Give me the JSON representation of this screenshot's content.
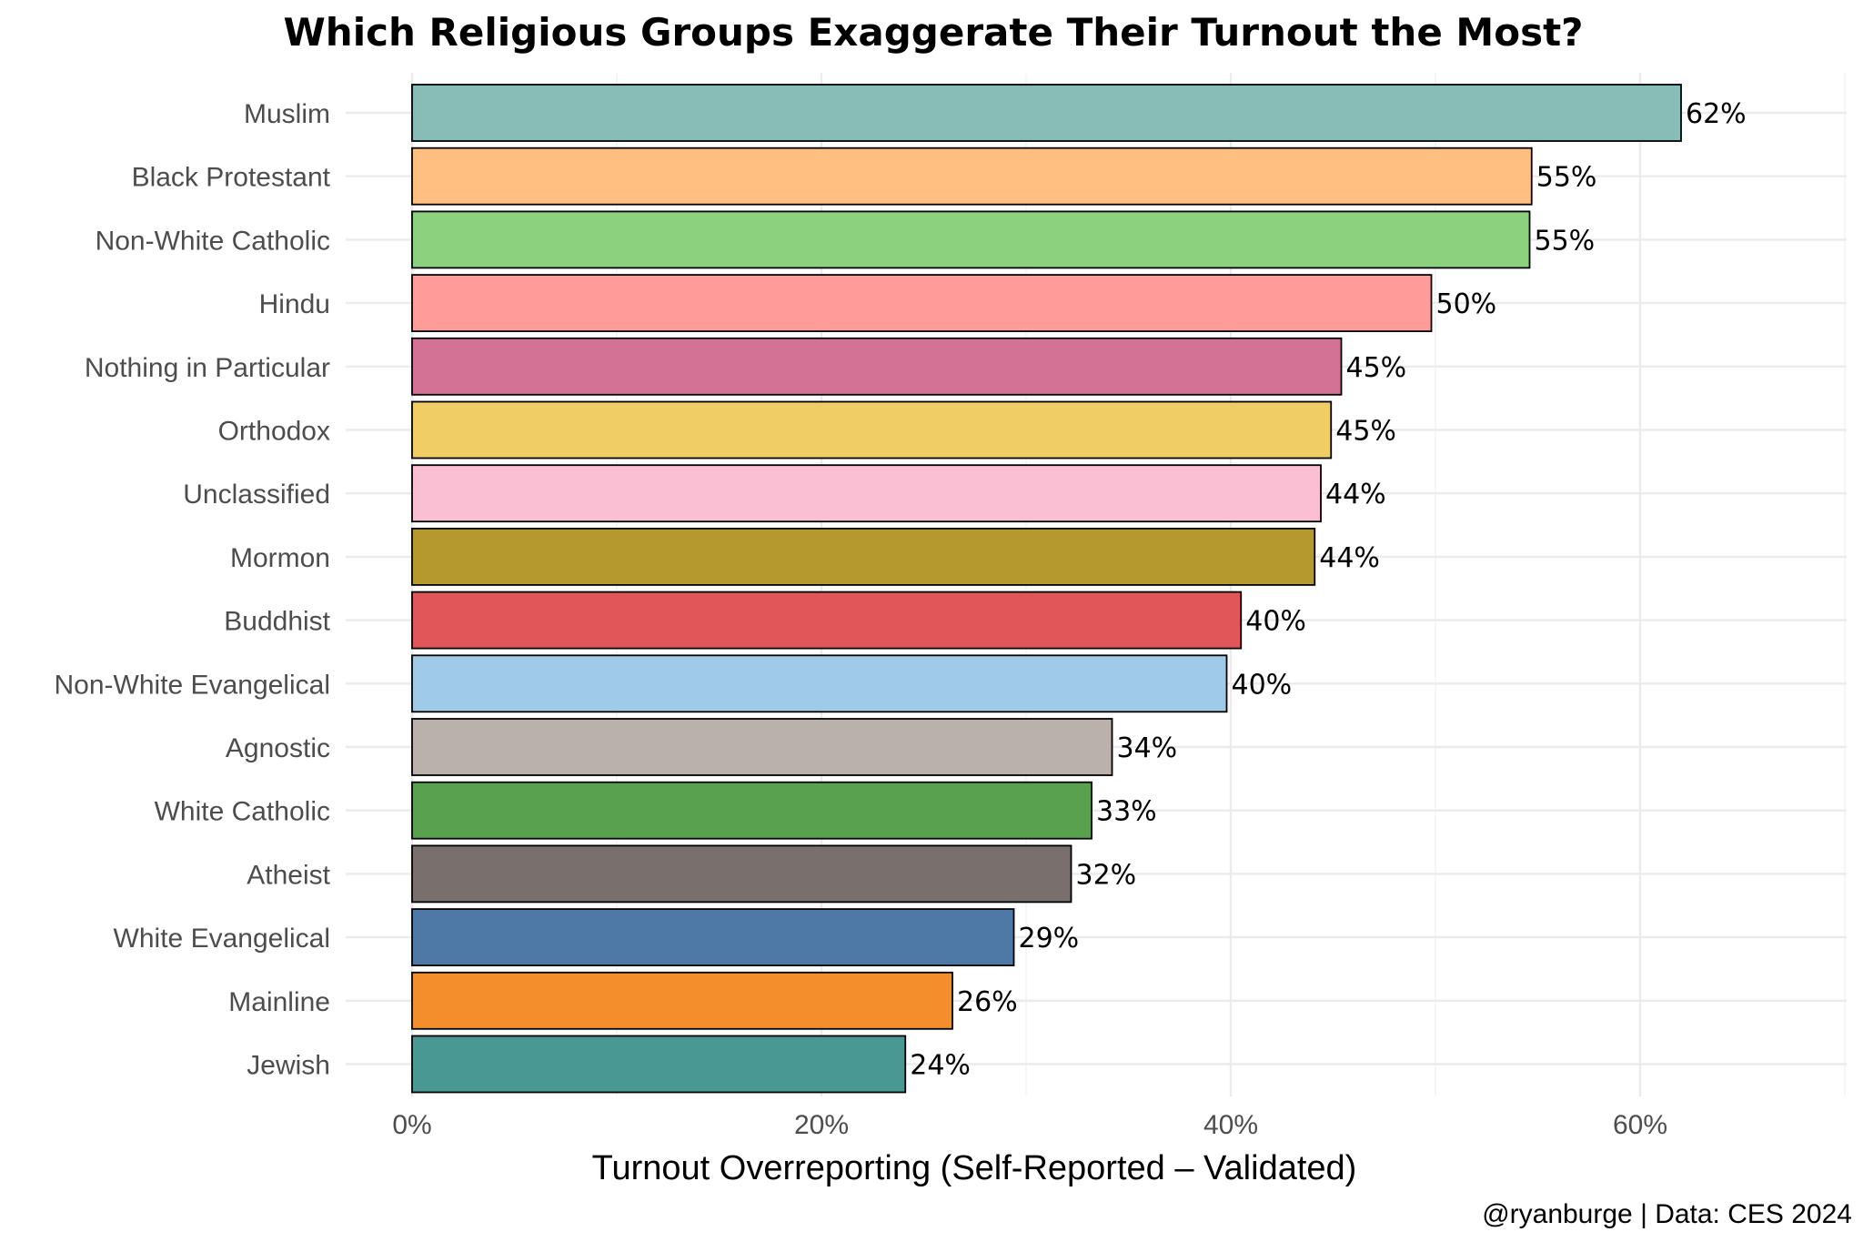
{
  "chart_data": {
    "type": "bar",
    "orientation": "horizontal",
    "title": "Which Religious Groups Exaggerate Their Turnout the Most?",
    "xlabel": "Turnout Overreporting (Self-Reported – Validated)",
    "ylabel": "",
    "caption": "@ryanburge | Data: CES 2024",
    "xlim": [
      0,
      70
    ],
    "x_ticks": [
      0,
      20,
      40,
      60
    ],
    "x_tick_labels": [
      "0%",
      "20%",
      "40%",
      "60%"
    ],
    "grid": true,
    "legend": "none",
    "categories": [
      "Muslim",
      "Black Protestant",
      "Non-White Catholic",
      "Hindu",
      "Nothing in Particular",
      "Orthodox",
      "Unclassified",
      "Mormon",
      "Buddhist",
      "Non-White Evangelical",
      "Agnostic",
      "White Catholic",
      "Atheist",
      "White Evangelical",
      "Mainline",
      "Jewish"
    ],
    "values": [
      62,
      54.7,
      54.6,
      49.8,
      45.4,
      44.9,
      44.4,
      44.1,
      40.5,
      39.8,
      34.2,
      33.2,
      32.2,
      29.4,
      26.4,
      24.1
    ],
    "value_labels": [
      "62%",
      "55%",
      "55%",
      "50%",
      "45%",
      "45%",
      "44%",
      "44%",
      "40%",
      "40%",
      "34%",
      "33%",
      "32%",
      "29%",
      "26%",
      "24%"
    ],
    "colors": [
      "#87BDB6",
      "#FFBF80",
      "#8CD17D",
      "#FF9D9A",
      "#D37295",
      "#F1CE63",
      "#FABFD2",
      "#B6992D",
      "#E15759",
      "#A0CBE8",
      "#BAB0AC",
      "#59A14F",
      "#79706E",
      "#4E79A7",
      "#F28E2B",
      "#499894"
    ]
  }
}
